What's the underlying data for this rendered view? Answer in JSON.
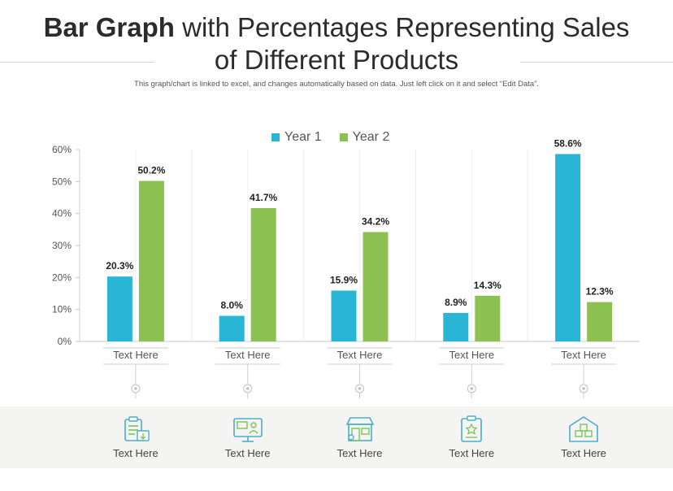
{
  "title": {
    "bold": "Bar Graph",
    "rest": " with Percentages Representing Sales",
    "line2": "of Different Products"
  },
  "subtitle": "This graph/chart is linked to excel, and changes automatically based on data. Just left click on it and select “Edit Data”.",
  "colors": {
    "year1": "#29b6d6",
    "year2": "#8cc152",
    "icon": "#4aaec9",
    "icon2": "#7cc35a"
  },
  "chart_data": {
    "type": "bar",
    "title": "Bar Graph with Percentages Representing Sales of Different Products",
    "categories": [
      "Text Here",
      "Text Here",
      "Text Here",
      "Text Here",
      "Text Here"
    ],
    "series": [
      {
        "name": "Year 1",
        "values": [
          20.3,
          8.0,
          15.9,
          8.9,
          58.6
        ]
      },
      {
        "name": "Year 2",
        "values": [
          50.2,
          41.7,
          34.2,
          14.3,
          12.3
        ]
      }
    ],
    "value_labels": {
      "Year 1": [
        "20.3%",
        "8.0%",
        "15.9%",
        "8.9%",
        "58.6%"
      ],
      "Year 2": [
        "50.2%",
        "41.7%",
        "34.2%",
        "14.3%",
        "12.3%"
      ]
    },
    "yticks": [
      "0%",
      "10%",
      "20%",
      "30%",
      "40%",
      "50%",
      "60%"
    ],
    "ylim": [
      0,
      60
    ],
    "xlabel": "",
    "ylabel": "",
    "legend": "top-center",
    "grid": false
  },
  "bottom": {
    "items": [
      {
        "icon": "clipboard-pencil-icon",
        "label": "Text Here"
      },
      {
        "icon": "monitor-presentation-icon",
        "label": "Text Here"
      },
      {
        "icon": "storefront-icon",
        "label": "Text Here"
      },
      {
        "icon": "badge-clipboard-icon",
        "label": "Text Here"
      },
      {
        "icon": "warehouse-box-icon",
        "label": "Text Here"
      }
    ]
  }
}
